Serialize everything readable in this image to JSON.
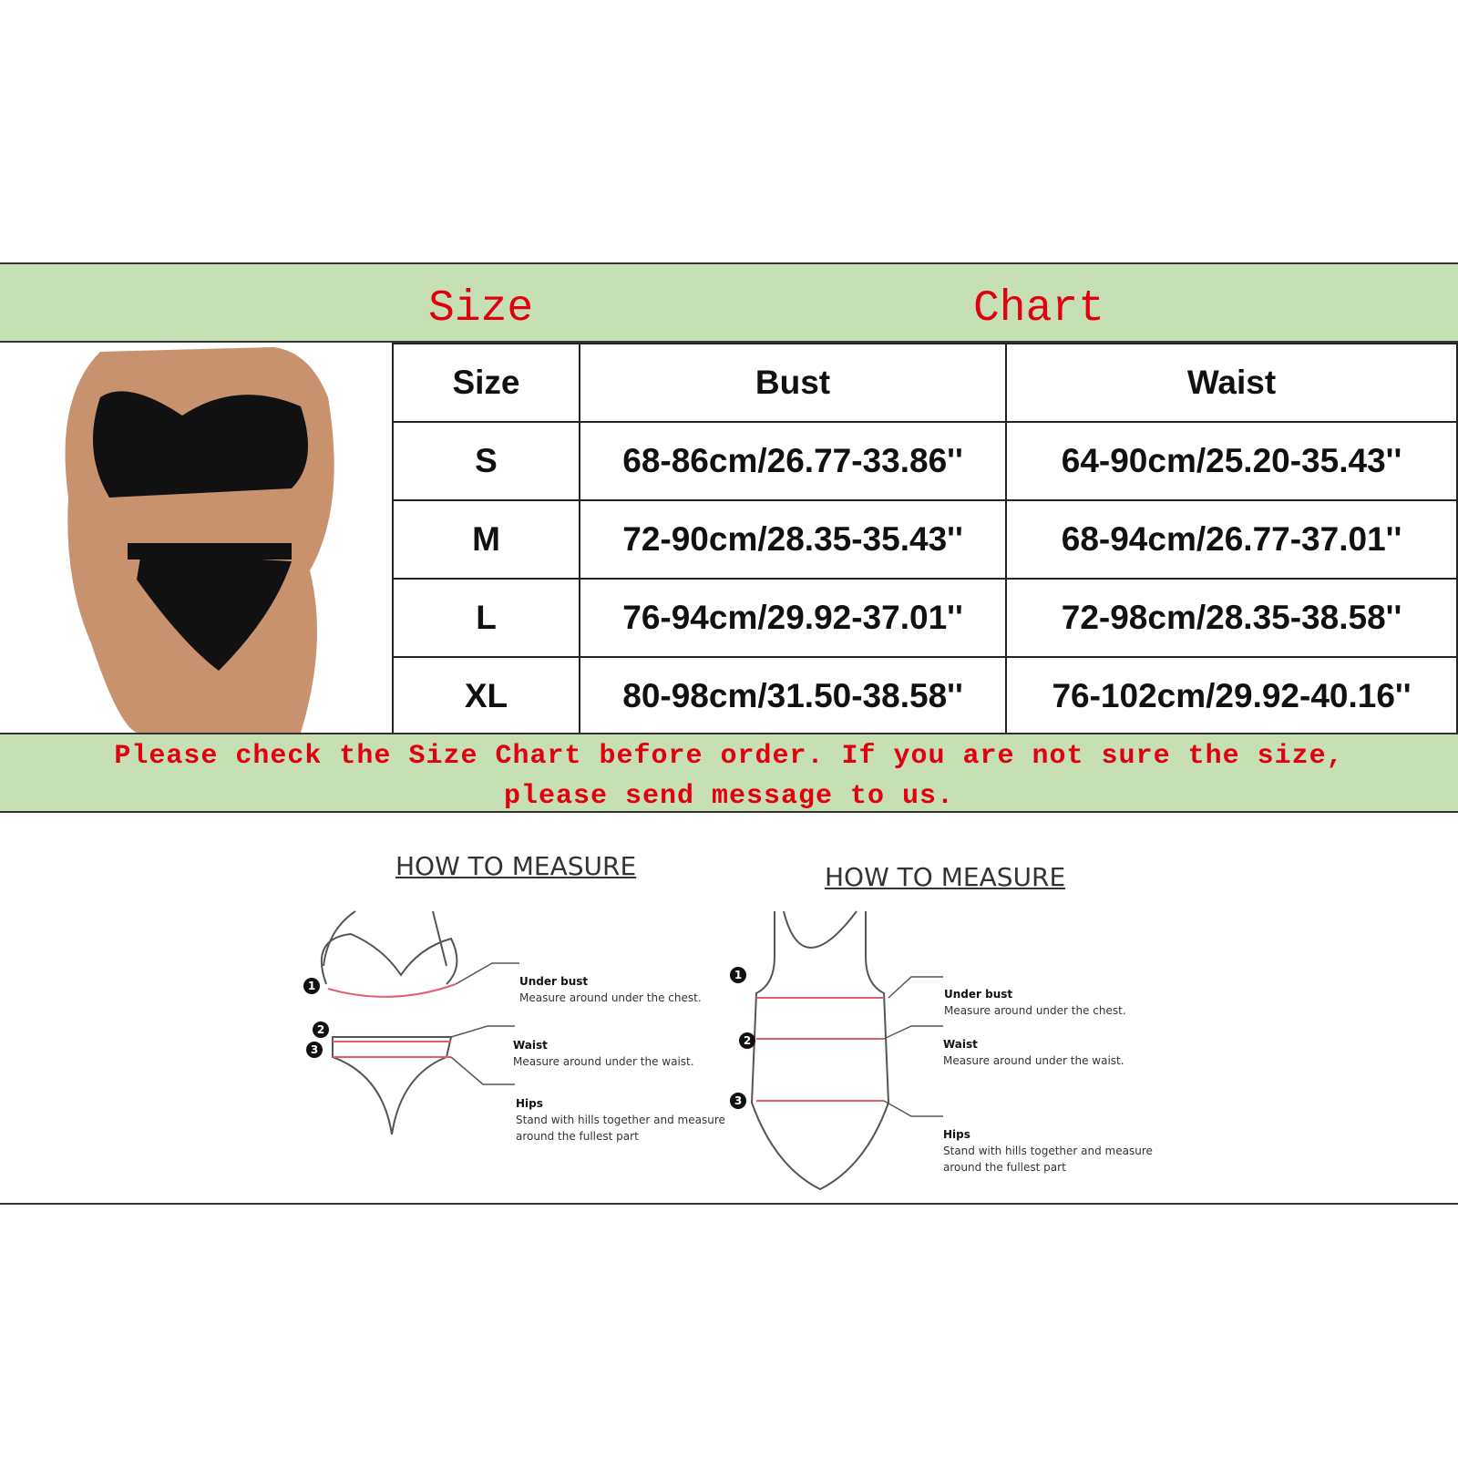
{
  "header": {
    "word1": "Size",
    "word2": "Chart"
  },
  "table": {
    "columns": [
      "Size",
      "Bust",
      "Waist"
    ],
    "rows": [
      [
        "S",
        "68-86cm/26.77-33.86''",
        "64-90cm/25.20-35.43''"
      ],
      [
        "M",
        "72-90cm/28.35-35.43''",
        "68-94cm/26.77-37.01''"
      ],
      [
        "L",
        "76-94cm/29.92-37.01''",
        "72-98cm/28.35-38.58''"
      ],
      [
        "XL",
        "80-98cm/31.50-38.58''",
        "76-102cm/29.92-40.16''"
      ]
    ]
  },
  "notice": {
    "line1": "Please check the Size Chart before order. If you are not sure the size,",
    "line2": "please send message to us."
  },
  "colors": {
    "band": "#c6e0b4",
    "red": "#e0000f"
  },
  "measure_left": {
    "title": "HOW TO MEASURE",
    "items": [
      {
        "num": "1",
        "name": "Under bust",
        "desc": "Measure around under the chest."
      },
      {
        "num": "2",
        "name": "Waist",
        "desc": "Measure around under the waist."
      },
      {
        "num": "3",
        "name": "Hips",
        "desc": "Stand with hills together and measure around  the fullest part"
      }
    ]
  },
  "measure_right": {
    "title": "HOW TO MEASURE",
    "items": [
      {
        "num": "1",
        "name": "Under bust",
        "desc": "Measure around under the chest."
      },
      {
        "num": "2",
        "name": "Waist",
        "desc": "Measure around under the waist."
      },
      {
        "num": "3",
        "name": "Hips",
        "desc": "Stand with hills together and measure around  the fullest part"
      }
    ]
  }
}
